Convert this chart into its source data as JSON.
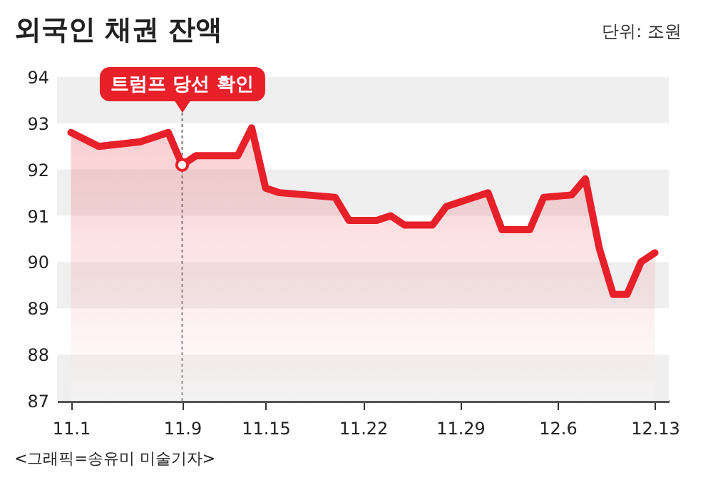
{
  "chart_data": {
    "type": "area",
    "title": "외국인 채권 잔액",
    "subtitle": "단위: 조원",
    "x": [
      "--11-01",
      "--11-03",
      "--11-06",
      "--11-08",
      "--11-09",
      "--11-10",
      "--11-13",
      "--11-14",
      "--11-15",
      "--11-16",
      "--11-20",
      "--11-21",
      "--11-23",
      "--11-24",
      "--11-25",
      "--11-27",
      "--11-28",
      "--11-30",
      "--12-01",
      "--12-02",
      "--12-04",
      "--12-05",
      "--12-07",
      "--12-08",
      "--12-09",
      "--12-10",
      "--12-11",
      "--12-12",
      "--12-13"
    ],
    "series": [
      {
        "color": "#e8202a",
        "values": [
          92.8,
          92.5,
          92.6,
          92.8,
          92.1,
          92.3,
          92.3,
          92.9,
          91.6,
          91.5,
          91.4,
          90.9,
          90.9,
          91.0,
          90.8,
          90.8,
          91.2,
          91.4,
          91.5,
          90.7,
          90.7,
          91.4,
          91.45,
          91.8,
          90.3,
          89.3,
          89.3,
          90.0,
          90.2
        ]
      }
    ],
    "xlim": [
      "--10-31",
      "--12-14"
    ],
    "xticks": [
      {
        "value": "--11-01",
        "label": "11.1"
      },
      {
        "value": "--11-09",
        "label": "11.9"
      },
      {
        "value": "--11-15",
        "label": "11.15"
      },
      {
        "value": "--11-22",
        "label": "11.22"
      },
      {
        "value": "--11-29",
        "label": "11.29"
      },
      {
        "value": "--12-06",
        "label": "12.6"
      },
      {
        "value": "--12-13",
        "label": "12.13"
      }
    ],
    "ylim": [
      87,
      94
    ],
    "yticks": [
      87,
      88,
      89,
      90,
      91,
      92,
      93,
      94
    ],
    "bands": [
      {
        "axis": "y",
        "from": 87,
        "to": 88,
        "color": "#efefef"
      },
      {
        "axis": "y",
        "from": 89,
        "to": 90,
        "color": "#efefef"
      },
      {
        "axis": "y",
        "from": 91,
        "to": 92,
        "color": "#efefef"
      },
      {
        "axis": "y",
        "from": 93,
        "to": 94,
        "color": "#efefef"
      }
    ],
    "ref_lines": [
      {
        "axis": "x",
        "value": "--11-09",
        "label": "트럼프 당선 확인",
        "line_style": "dotted",
        "color": "#777777"
      }
    ],
    "annotations": [
      "<그래픽=송유미 미술기자>"
    ]
  }
}
